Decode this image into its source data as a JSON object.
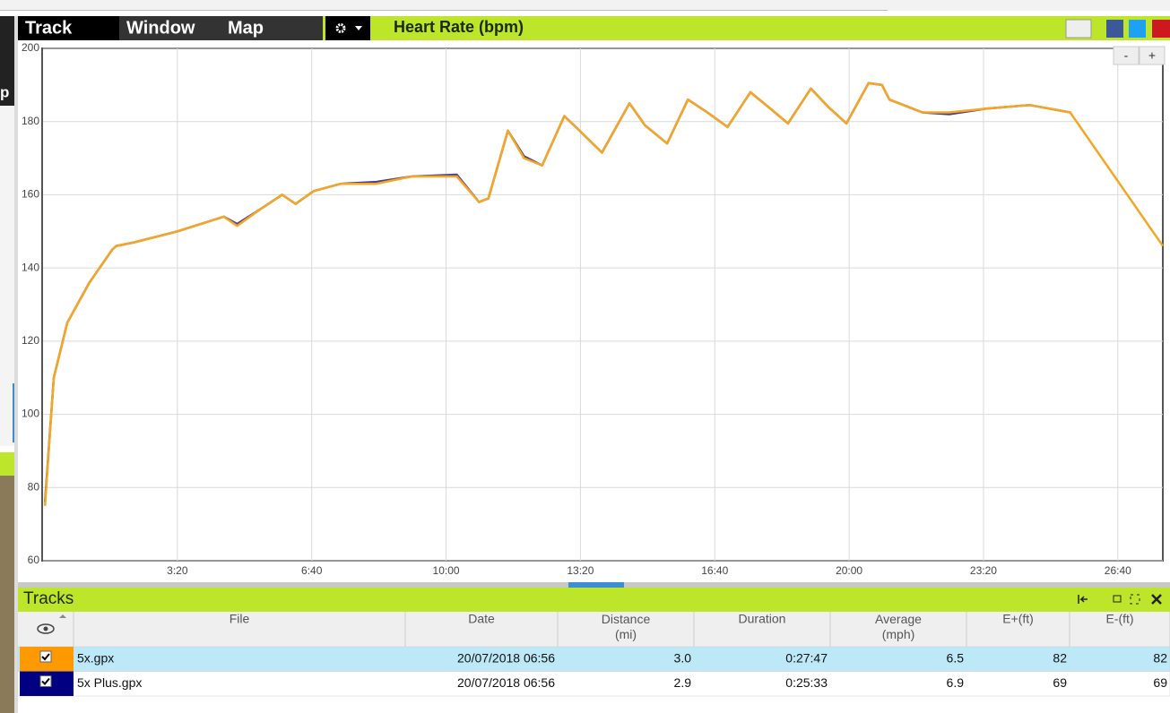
{
  "menu": {
    "items": [
      "Track",
      "Window",
      "Map"
    ]
  },
  "left_panel": {
    "fragments": [
      "p"
    ]
  },
  "zoom": {
    "minus": "-",
    "plus": "+"
  },
  "chart_data": {
    "type": "line",
    "title": "Heart Rate (bpm)",
    "xlim": [
      0,
      1667
    ],
    "ylim": [
      60,
      200
    ],
    "xticks": [
      {
        "value": 200,
        "label": "3:20"
      },
      {
        "value": 400,
        "label": "6:40"
      },
      {
        "value": 600,
        "label": "10:00"
      },
      {
        "value": 800,
        "label": "13:20"
      },
      {
        "value": 1000,
        "label": "16:40"
      },
      {
        "value": 1200,
        "label": "20:00"
      },
      {
        "value": 1400,
        "label": "23:20"
      },
      {
        "value": 1600,
        "label": "26:40"
      }
    ],
    "yticks": [
      60,
      80,
      100,
      120,
      140,
      160,
      180,
      200
    ],
    "grid": true,
    "series": [
      {
        "color": "#4b3f8f",
        "x": [
          3,
          16,
          36,
          69,
          103,
          109,
          136,
          200,
          269,
          289,
          323,
          356,
          376,
          403,
          443,
          496,
          549,
          616,
          649,
          663,
          692,
          716,
          743,
          776,
          796,
          832,
          873,
          896,
          929,
          960,
          989,
          1019,
          1053,
          1083,
          1109,
          1143,
          1169,
          1196,
          1229,
          1249,
          1260,
          1309,
          1349,
          1403,
          1469,
          1529
        ],
        "values": [
          76,
          110,
          125,
          136,
          145,
          146,
          147,
          150,
          154,
          152,
          156,
          160,
          157.5,
          161,
          163,
          163.5,
          165,
          165.5,
          158,
          159,
          177.5,
          170.5,
          168,
          181.5,
          178,
          171.5,
          185,
          179,
          174,
          186,
          182.5,
          178.5,
          188,
          183.5,
          179.5,
          189,
          184,
          179.5,
          190.5,
          190,
          186,
          182.5,
          182,
          183.5,
          184.5,
          182.5
        ]
      },
      {
        "color": "#f5a623",
        "x": [
          3,
          16,
          36,
          69,
          103,
          109,
          136,
          200,
          269,
          289,
          323,
          356,
          376,
          403,
          443,
          496,
          549,
          616,
          649,
          663,
          692,
          716,
          743,
          776,
          796,
          832,
          873,
          896,
          929,
          960,
          989,
          1019,
          1053,
          1083,
          1109,
          1143,
          1169,
          1196,
          1229,
          1249,
          1260,
          1309,
          1349,
          1403,
          1469,
          1529,
          1667
        ],
        "values": [
          75,
          110,
          125,
          136,
          145,
          146,
          147,
          150,
          154,
          151.5,
          156,
          160,
          157.5,
          161,
          163,
          163,
          165,
          165,
          158,
          159,
          177.5,
          170,
          168,
          181.5,
          178,
          171.5,
          185,
          179,
          174,
          186,
          182.5,
          178.5,
          188,
          183.5,
          179.5,
          189,
          184,
          179.5,
          190.5,
          190,
          186,
          182.5,
          182.5,
          183.5,
          184.5,
          182.5,
          146
        ]
      }
    ]
  },
  "tracks": {
    "title": "Tracks",
    "columns": [
      "File",
      "Date",
      "Distance\n(mi)",
      "Duration",
      "Average\n(mph)",
      "E+(ft)",
      "E-(ft)"
    ],
    "rows": [
      {
        "color": "#ff9900",
        "cells": [
          "5x.gpx",
          "20/07/2018 06:56",
          "3.0",
          "0:27:47",
          "6.5",
          "82",
          "82"
        ]
      },
      {
        "color": "#000080",
        "cells": [
          "5x Plus.gpx",
          "20/07/2018 06:56",
          "2.9",
          "0:25:33",
          "6.9",
          "69",
          "69"
        ]
      }
    ]
  }
}
